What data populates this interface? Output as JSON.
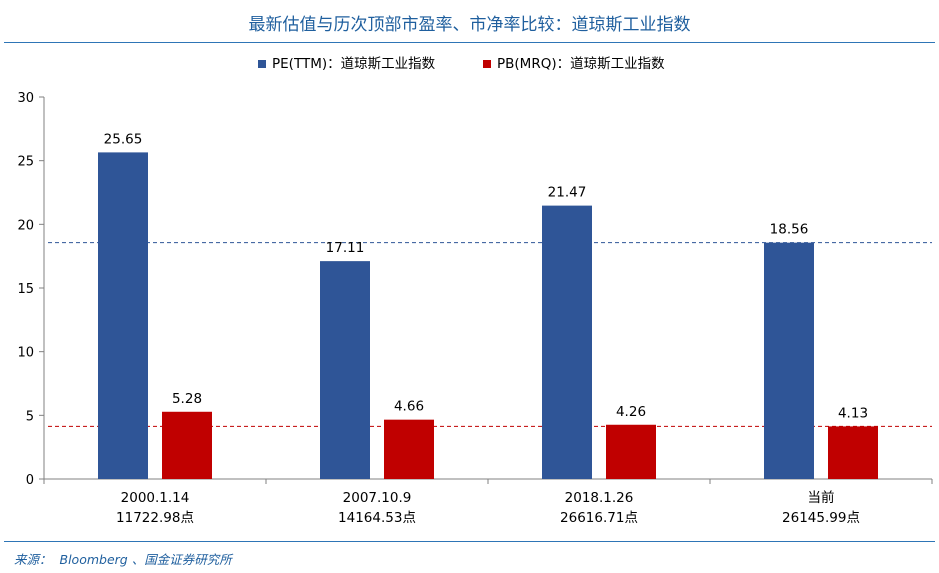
{
  "header": {
    "title": "最新估值与历次顶部市盈率、市净率比较：道琼斯工业指数"
  },
  "footer": {
    "source_label": "来源：",
    "source_text": "Bloomberg 、国金证券研究所"
  },
  "colors": {
    "pe": "#2f5597",
    "pb": "#c00000",
    "title": "#1f5f9e"
  },
  "chart_data": {
    "type": "bar",
    "categories": [
      {
        "line1": "2000.1.14",
        "line2": "11722.98点"
      },
      {
        "line1": "2007.10.9",
        "line2": "14164.53点"
      },
      {
        "line1": "2018.1.26",
        "line2": "26616.71点"
      },
      {
        "line1": "当前",
        "line2": "26145.99点"
      }
    ],
    "series": [
      {
        "name": "PE(TTM)：道琼斯工业指数",
        "values": [
          25.65,
          17.11,
          21.47,
          18.56
        ],
        "labels": [
          "25.65",
          "17.11",
          "21.47",
          "18.56"
        ]
      },
      {
        "name": "PB(MRQ)：道琼斯工业指数",
        "values": [
          5.28,
          4.66,
          4.26,
          4.13
        ],
        "labels": [
          "5.28",
          "4.66",
          "4.26",
          "4.13"
        ]
      }
    ],
    "reference_lines": [
      {
        "value": 18.56,
        "series": 0,
        "style": "dashed"
      },
      {
        "value": 4.13,
        "series": 1,
        "style": "dashed"
      }
    ],
    "yticks": [
      "0",
      "5",
      "10",
      "15",
      "20",
      "25",
      "30"
    ],
    "ylim": [
      0,
      30
    ],
    "legend_position": "top-center",
    "grid": false
  }
}
